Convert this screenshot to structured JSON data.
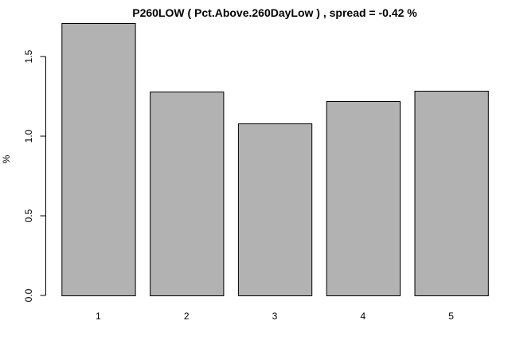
{
  "chart_data": {
    "type": "bar",
    "title": "P260LOW ( Pct.Above.260DayLow ) , spread = -0.42 %",
    "xlabel": "",
    "ylabel": "%",
    "categories": [
      "1",
      "2",
      "3",
      "4",
      "5"
    ],
    "values": [
      1.71,
      1.28,
      1.08,
      1.22,
      1.285
    ],
    "ylim": [
      0,
      1.71
    ],
    "yticks": [
      0.0,
      0.5,
      1.0,
      1.5
    ],
    "ytick_labels": [
      "0.0",
      "0.5",
      "1.0",
      "1.5"
    ],
    "grid": false,
    "bar_color": "#b2b2b2",
    "border_color": "#000000"
  }
}
